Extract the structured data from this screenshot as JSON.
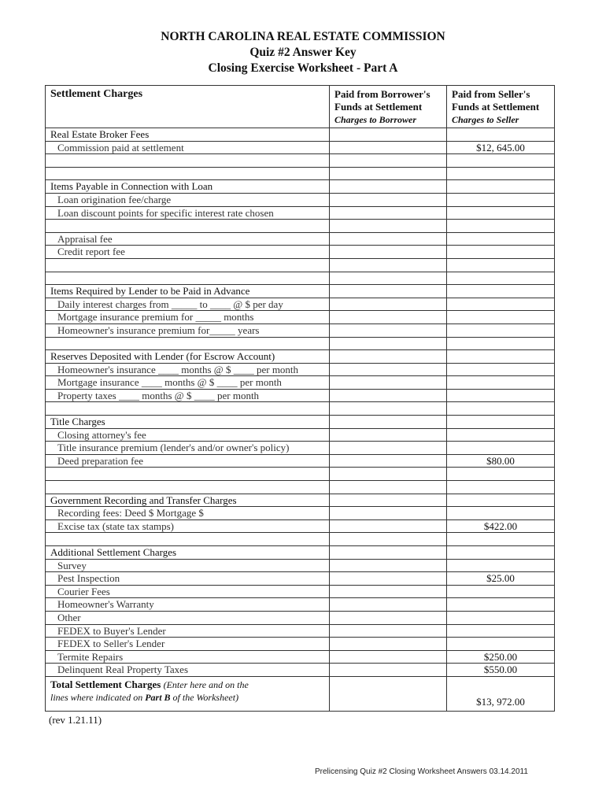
{
  "header": {
    "line1": "NORTH CAROLINA REAL ESTATE COMMISSION",
    "line2": "Quiz #2 Answer Key",
    "line3": "Closing Exercise Worksheet - Part A"
  },
  "columns": {
    "settlement": "Settlement Charges",
    "borrower_line1": "Paid from Borrower's",
    "borrower_line2": "Funds at Settlement",
    "borrower_sub": "Charges to  Borrower",
    "seller_line1": "Paid from Seller's",
    "seller_line2": "Funds at Settlement",
    "seller_sub": "Charges to Seller"
  },
  "rows": [
    {
      "type": "section",
      "label": "Real Estate Broker Fees"
    },
    {
      "type": "item",
      "label": "Commission paid at settlement",
      "borrower": "",
      "seller": "$12, 645.00"
    },
    {
      "type": "blank"
    },
    {
      "type": "blank"
    },
    {
      "type": "section",
      "label": "Items Payable in Connection with Loan"
    },
    {
      "type": "item",
      "label": "Loan origination fee/charge"
    },
    {
      "type": "item",
      "label": "Loan discount points for specific interest rate chosen"
    },
    {
      "type": "blank"
    },
    {
      "type": "item",
      "label": "Appraisal fee"
    },
    {
      "type": "item",
      "label": "Credit report fee"
    },
    {
      "type": "blank"
    },
    {
      "type": "blank"
    },
    {
      "type": "section",
      "label": "Items Required by Lender to be Paid in Advance"
    },
    {
      "type": "item",
      "label": "Daily interest charges from _____ to ____ @ $     per day"
    },
    {
      "type": "item",
      "label": "Mortgage insurance premium for _____ months"
    },
    {
      "type": "item",
      "label": "Homeowner's insurance premium for_____ years"
    },
    {
      "type": "blank"
    },
    {
      "type": "section",
      "label": "Reserves Deposited with Lender  (for Escrow Account)"
    },
    {
      "type": "item",
      "label": "Homeowner's insurance  ____  months @ $ ____ per month"
    },
    {
      "type": "item",
      "label": "Mortgage insurance  ____  months @ $ ____ per month"
    },
    {
      "type": "item",
      "label": "Property taxes  ____  months @ $ ____ per month"
    },
    {
      "type": "blank"
    },
    {
      "type": "section",
      "label": "Title Charges"
    },
    {
      "type": "item",
      "label": "Closing attorney's fee"
    },
    {
      "type": "item",
      "label": "Title insurance premium (lender's and/or owner's policy)"
    },
    {
      "type": "item",
      "label": "Deed preparation fee",
      "seller": "$80.00"
    },
    {
      "type": "blank"
    },
    {
      "type": "blank"
    },
    {
      "type": "section",
      "label": "Government Recording and Transfer Charges"
    },
    {
      "type": "item",
      "label": "Recording fees: Deed     $         Mortgage  $"
    },
    {
      "type": "item",
      "label": "Excise tax (state tax stamps)",
      "seller": "$422.00"
    },
    {
      "type": "blank"
    },
    {
      "type": "section",
      "label": "Additional Settlement Charges"
    },
    {
      "type": "item",
      "label": "Survey"
    },
    {
      "type": "item",
      "label": "Pest Inspection",
      "seller": "$25.00"
    },
    {
      "type": "item",
      "label": "Courier Fees"
    },
    {
      "type": "item",
      "label": "Homeowner's Warranty"
    },
    {
      "type": "item",
      "label": "Other"
    },
    {
      "type": "item",
      "label": "FEDEX to Buyer's Lender"
    },
    {
      "type": "item",
      "label": "FEDEX to Seller's Lender"
    },
    {
      "type": "item",
      "label": "Termite Repairs",
      "seller": "$250.00"
    },
    {
      "type": "item",
      "label": "Delinquent Real Property  Taxes",
      "seller": "$550.00"
    }
  ],
  "total": {
    "label": "Total Settlement Charges",
    "note1": "(Enter here and on the",
    "note2": "lines where indicated on",
    "note_bold": "Part B",
    "note3": "of the Worksheet)",
    "borrower": "",
    "seller": "$13, 972.00"
  },
  "revision": "(rev 1.21.11)",
  "footer": "Prelicensing Quiz #2 Closing Worksheet Answers 03.14.2011",
  "colors": {
    "shade": "#8c8c8c"
  }
}
